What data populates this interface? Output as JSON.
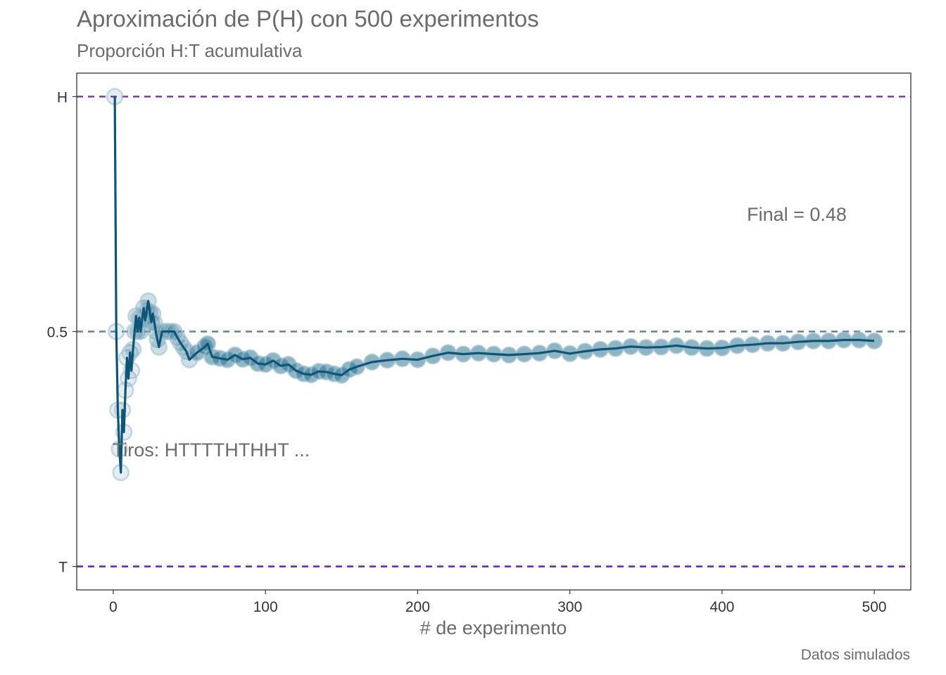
{
  "colors": {
    "line": "#0e5575",
    "point_fill": "#1f6b8c",
    "h_line": "#7b3f9e",
    "mid_line": "#6a7f91",
    "t_line": "#6a1fb0",
    "frame": "#333333",
    "text": "#6b6b6b"
  },
  "chart_data": {
    "type": "line",
    "title": "Aproximación de P(H) con 500 experimentos",
    "subtitle": "Proporción H:T acumulativa",
    "xlabel": "# de experimento",
    "ylabel": "",
    "caption": "Datos simulados",
    "xlim": [
      -24,
      524
    ],
    "ylim": [
      -0.05,
      1.05
    ],
    "x_ticks": [
      0,
      100,
      200,
      300,
      400,
      500
    ],
    "y_ticks": [
      {
        "value": 0,
        "label": "T"
      },
      {
        "value": 0.5,
        "label": "0.5"
      },
      {
        "value": 1,
        "label": "H"
      }
    ],
    "reference_lines": [
      {
        "y": 1,
        "style": "dashed",
        "color": "#7b3f9e"
      },
      {
        "y": 0.5,
        "style": "dashed",
        "color": "#6a7f91"
      },
      {
        "y": 0,
        "style": "dashed",
        "color": "#6a1fb0"
      }
    ],
    "annotations": {
      "final_label": "Final =  0.48",
      "final_value": 0.48,
      "tiros_label": "Tiros:  HTTTTHTHHT ..."
    },
    "first_flips": [
      "H",
      "T",
      "T",
      "T",
      "T",
      "H",
      "T",
      "H",
      "H",
      "T"
    ],
    "series": [
      {
        "x": [
          1,
          2,
          3,
          4,
          5,
          6,
          7,
          8,
          9,
          10,
          11,
          12,
          13,
          14,
          15,
          16,
          17,
          18,
          19,
          20,
          21,
          22,
          23,
          24,
          25,
          26,
          27,
          28,
          29,
          30,
          32,
          34,
          36,
          38,
          40,
          42,
          44,
          46,
          48,
          50,
          55,
          60,
          62,
          65,
          70,
          75,
          80,
          85,
          90,
          95,
          100,
          105,
          110,
          115,
          120,
          125,
          130,
          135,
          140,
          145,
          150,
          155,
          160,
          170,
          180,
          190,
          200,
          210,
          220,
          230,
          240,
          250,
          260,
          270,
          280,
          290,
          300,
          310,
          320,
          330,
          340,
          350,
          360,
          370,
          380,
          390,
          400,
          410,
          420,
          430,
          440,
          450,
          460,
          470,
          480,
          490,
          500
        ],
        "values": [
          1.0,
          0.5,
          0.333,
          0.25,
          0.2,
          0.333,
          0.286,
          0.375,
          0.444,
          0.4,
          0.455,
          0.417,
          0.462,
          0.5,
          0.533,
          0.5,
          0.529,
          0.5,
          0.526,
          0.55,
          0.524,
          0.545,
          0.565,
          0.542,
          0.52,
          0.538,
          0.519,
          0.5,
          0.483,
          0.467,
          0.5,
          0.5,
          0.5,
          0.5,
          0.5,
          0.488,
          0.477,
          0.467,
          0.458,
          0.44,
          0.455,
          0.467,
          0.474,
          0.446,
          0.443,
          0.44,
          0.45,
          0.441,
          0.444,
          0.432,
          0.43,
          0.438,
          0.427,
          0.43,
          0.417,
          0.41,
          0.408,
          0.415,
          0.414,
          0.41,
          0.407,
          0.419,
          0.425,
          0.435,
          0.439,
          0.442,
          0.44,
          0.448,
          0.455,
          0.452,
          0.454,
          0.452,
          0.45,
          0.452,
          0.454,
          0.459,
          0.453,
          0.458,
          0.462,
          0.464,
          0.468,
          0.466,
          0.467,
          0.47,
          0.466,
          0.464,
          0.465,
          0.47,
          0.472,
          0.475,
          0.475,
          0.478,
          0.48,
          0.48,
          0.482,
          0.482,
          0.48
        ]
      }
    ]
  }
}
